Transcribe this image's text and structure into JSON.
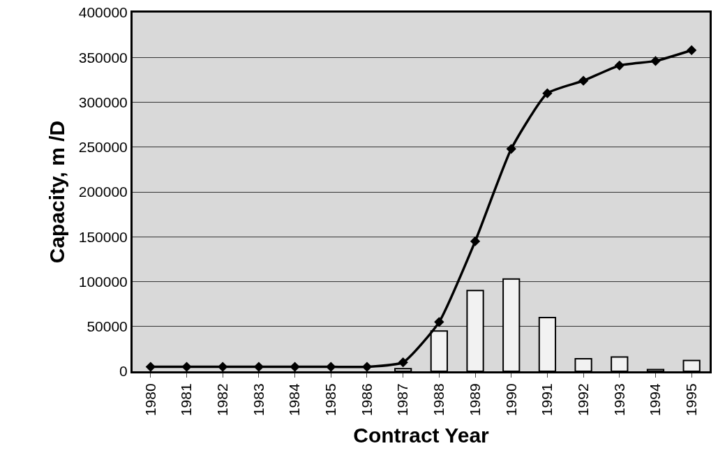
{
  "chart_data": {
    "type": "bar",
    "xlabel": "Contract Year",
    "ylabel": "Capacity, m /D",
    "categories": [
      "1980",
      "1981",
      "1982",
      "1983",
      "1984",
      "1985",
      "1986",
      "1987",
      "1988",
      "1989",
      "1990",
      "1991",
      "1992",
      "1993",
      "1994",
      "1995"
    ],
    "series": [
      {
        "color": "#f2f2f2",
        "values": [
          null,
          null,
          null,
          null,
          null,
          null,
          null,
          3000,
          45000,
          90000,
          103000,
          60000,
          14000,
          16000,
          2000,
          12000
        ]
      },
      {
        "type": "line",
        "color": "#000000",
        "marker": "diamond",
        "values": [
          5000,
          5000,
          5000,
          5000,
          5000,
          5000,
          5000,
          10000,
          55000,
          145000,
          248000,
          310000,
          324000,
          341000,
          346000,
          358000
        ]
      }
    ],
    "ylim": [
      0,
      400000
    ],
    "yticks": [
      0,
      50000,
      100000,
      150000,
      200000,
      250000,
      300000,
      350000,
      400000
    ],
    "grid": "y",
    "legend": false
  }
}
